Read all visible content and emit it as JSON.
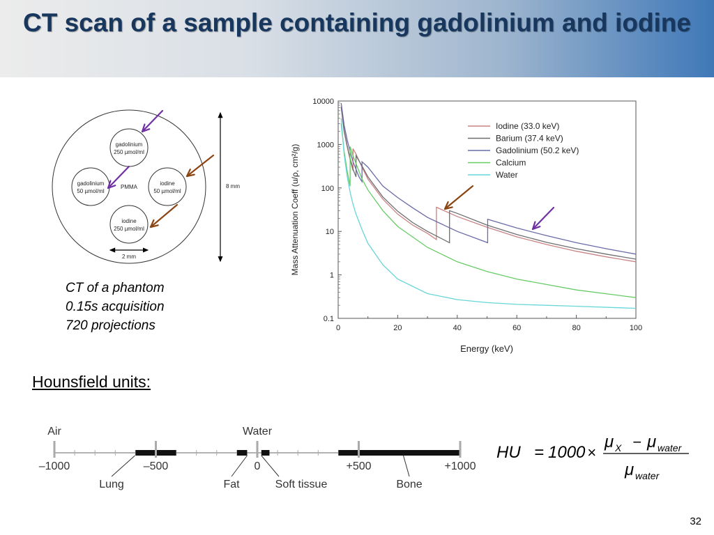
{
  "slide": {
    "title": "CT scan of a sample containing gadolinium and iodine",
    "page_number": "32",
    "colors": {
      "title": "#17375e",
      "arrow_purple": "#7030a0",
      "arrow_brown": "#8b4513"
    }
  },
  "phantom": {
    "labels": {
      "top": [
        "gadolinium",
        "250 µmol/ml"
      ],
      "left": [
        "gadolinium",
        "50 µmol/ml"
      ],
      "right": [
        "iodine",
        "50 µmol/ml"
      ],
      "bottom": [
        "iodine",
        "250 µmol/ml"
      ],
      "center": "PMMA",
      "diameter": "8 mm",
      "insert_size": "2 mm"
    },
    "caption": [
      "CT of a phantom",
      "0.15s acquisition",
      "720 projections"
    ]
  },
  "chart_data": {
    "type": "line",
    "title": "",
    "xlabel": "Energy (keV)",
    "ylabel": "Mass Attenuation Coeff (u/ρ, cm²/g)",
    "x_scale": "linear",
    "y_scale": "log",
    "xlim": [
      0,
      100
    ],
    "ylim": [
      0.1,
      10000
    ],
    "x_ticks": [
      "0",
      "20",
      "40",
      "60",
      "80",
      "100"
    ],
    "y_ticks": [
      "0.1",
      "1",
      "10",
      "100",
      "1000",
      "10000"
    ],
    "grid": false,
    "legend_position": "top-right",
    "series": [
      {
        "name": "Iodine (33.0 keV)",
        "color": "#c98282",
        "x": [
          1,
          2,
          3,
          4,
          5,
          5,
          6,
          8,
          10,
          15,
          20,
          25,
          30,
          33,
          33,
          40,
          50,
          60,
          70,
          80,
          90,
          100
        ],
        "y": [
          7000,
          2000,
          900,
          450,
          250,
          800,
          600,
          300,
          160,
          55,
          25,
          14,
          9,
          6.5,
          36,
          22,
          12.5,
          7.5,
          5,
          3.5,
          2.6,
          2
        ]
      },
      {
        "name": "Barium (37.4 keV)",
        "color": "#6e6e6e",
        "x": [
          1,
          2,
          3,
          4,
          5,
          6,
          6,
          8,
          10,
          15,
          20,
          25,
          30,
          37.4,
          37.4,
          40,
          50,
          60,
          70,
          80,
          90,
          100
        ],
        "y": [
          7500,
          2100,
          950,
          480,
          270,
          180,
          550,
          320,
          180,
          62,
          29,
          16,
          10,
          5.5,
          30,
          26,
          14,
          8.5,
          5.6,
          4,
          3,
          2.3
        ]
      },
      {
        "name": "Gadolinium (50.2 keV)",
        "color": "#6a6aa8",
        "x": [
          1,
          2,
          3,
          4,
          5,
          7,
          8,
          8,
          10,
          15,
          20,
          25,
          30,
          40,
          50.2,
          50.2,
          60,
          70,
          80,
          90,
          100
        ],
        "y": [
          9000,
          2800,
          1300,
          700,
          400,
          180,
          140,
          400,
          300,
          110,
          60,
          35,
          21,
          10,
          5.5,
          19,
          12,
          8,
          5.5,
          4,
          3
        ]
      },
      {
        "name": "Calcium",
        "color": "#66cc66",
        "x": [
          1,
          2,
          3,
          4,
          4,
          5,
          8,
          10,
          15,
          20,
          30,
          40,
          50,
          60,
          80,
          100
        ],
        "y": [
          3000,
          700,
          250,
          110,
          900,
          550,
          160,
          90,
          30,
          13,
          4.3,
          2,
          1.2,
          0.8,
          0.45,
          0.3
        ]
      },
      {
        "name": "Water",
        "color": "#66d6d6",
        "x": [
          1,
          2,
          3,
          4,
          5,
          6,
          8,
          10,
          15,
          20,
          30,
          40,
          50,
          60,
          80,
          100
        ],
        "y": [
          4000,
          600,
          190,
          80,
          42,
          25,
          11,
          5.3,
          1.7,
          0.8,
          0.37,
          0.27,
          0.23,
          0.21,
          0.19,
          0.17
        ]
      }
    ]
  },
  "hounsfield": {
    "heading": "Hounsfield units:",
    "scale_min": -1000,
    "scale_max": 1000,
    "top_labels": [
      {
        "text": "Air",
        "value": -1000
      },
      {
        "text": "Water",
        "value": 0
      }
    ],
    "tick_labels": [
      {
        "text": "–1000",
        "value": -1000
      },
      {
        "text": "–500",
        "value": -500
      },
      {
        "text": "0",
        "value": 0
      },
      {
        "text": "+500",
        "value": 500
      },
      {
        "text": "+1000",
        "value": 1000
      }
    ],
    "ranges": [
      {
        "name": "Lung",
        "from": -600,
        "to": -400
      },
      {
        "name": "Fat",
        "from": -100,
        "to": -50
      },
      {
        "name": "Soft tissue",
        "from": 20,
        "to": 60
      },
      {
        "name": "Bone",
        "from": 400,
        "to": 1000
      }
    ],
    "formula": {
      "lhs": "HU",
      "equals": "=",
      "factor": "1000",
      "times": "×",
      "mu": "μ",
      "sub_x": "X",
      "minus": "−",
      "sub_water": "water"
    }
  }
}
